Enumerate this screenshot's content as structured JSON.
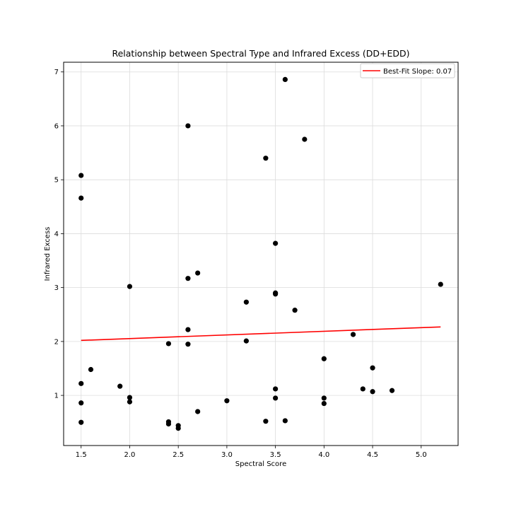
{
  "chart_data": {
    "type": "scatter",
    "title": "Relationship between Spectral Type and Infrared Excess (DD+EDD)",
    "xlabel": "Spectral Score",
    "ylabel": "Infrared Excess",
    "xlim": [
      1.32,
      5.38
    ],
    "ylim": [
      0.07,
      7.18
    ],
    "xticks": [
      "1.5",
      "2.0",
      "2.5",
      "3.0",
      "3.5",
      "4.0",
      "4.5",
      "5.0"
    ],
    "xtick_values": [
      1.5,
      2.0,
      2.5,
      3.0,
      3.5,
      4.0,
      4.5,
      5.0
    ],
    "yticks": [
      "1",
      "2",
      "3",
      "4",
      "5",
      "6",
      "7"
    ],
    "ytick_values": [
      1,
      2,
      3,
      4,
      5,
      6,
      7
    ],
    "grid": true,
    "legend_position": "top-right",
    "series": [
      {
        "name": "",
        "kind": "scatter",
        "color": "#000000",
        "points": [
          [
            3.6,
            6.86
          ],
          [
            2.6,
            6.0
          ],
          [
            3.8,
            5.75
          ],
          [
            3.4,
            5.4
          ],
          [
            1.5,
            5.08
          ],
          [
            1.5,
            4.66
          ],
          [
            3.5,
            3.82
          ],
          [
            2.7,
            3.27
          ],
          [
            2.6,
            3.17
          ],
          [
            2.0,
            3.02
          ],
          [
            5.2,
            3.06
          ],
          [
            3.5,
            2.9
          ],
          [
            3.5,
            2.88
          ],
          [
            3.2,
            2.73
          ],
          [
            3.7,
            2.58
          ],
          [
            2.6,
            2.22
          ],
          [
            4.3,
            2.13
          ],
          [
            3.2,
            2.01
          ],
          [
            2.4,
            1.96
          ],
          [
            2.6,
            1.95
          ],
          [
            4.0,
            1.68
          ],
          [
            4.5,
            1.51
          ],
          [
            1.6,
            1.48
          ],
          [
            1.5,
            1.22
          ],
          [
            1.9,
            1.17
          ],
          [
            3.5,
            1.12
          ],
          [
            4.4,
            1.12
          ],
          [
            4.5,
            1.07
          ],
          [
            4.7,
            1.09
          ],
          [
            2.0,
            0.96
          ],
          [
            3.5,
            0.95
          ],
          [
            4.0,
            0.95
          ],
          [
            3.0,
            0.9
          ],
          [
            2.0,
            0.88
          ],
          [
            1.5,
            0.86
          ],
          [
            4.0,
            0.85
          ],
          [
            2.7,
            0.7
          ],
          [
            3.6,
            0.53
          ],
          [
            3.4,
            0.52
          ],
          [
            2.4,
            0.51
          ],
          [
            1.5,
            0.5
          ],
          [
            2.4,
            0.47
          ],
          [
            2.5,
            0.44
          ],
          [
            2.5,
            0.39
          ]
        ]
      },
      {
        "name": "Best-Fit Slope: 0.07",
        "kind": "line",
        "color": "#ff0000",
        "x": [
          1.5,
          5.2
        ],
        "y": [
          2.02,
          2.27
        ]
      }
    ]
  }
}
